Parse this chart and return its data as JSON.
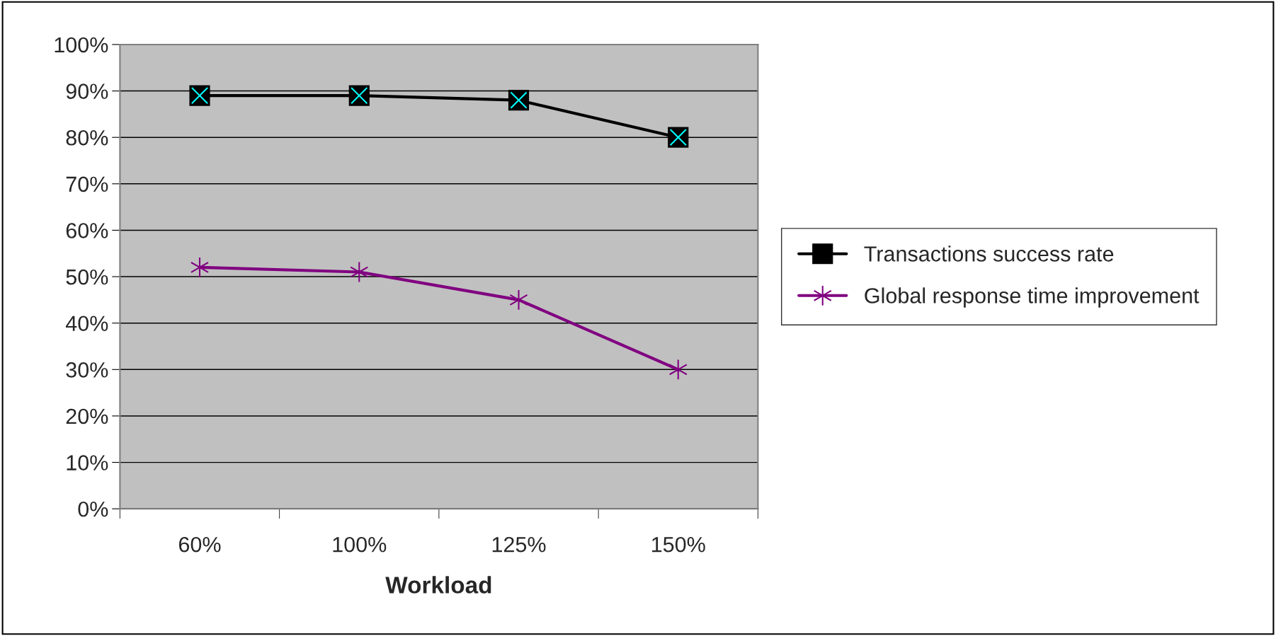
{
  "chart_data": {
    "type": "line",
    "xlabel": "Workload",
    "categories": [
      "60%",
      "100%",
      "125%",
      "150%"
    ],
    "series": [
      {
        "name": "Transactions success rate",
        "color": "#000000",
        "marker": "square",
        "values": [
          89,
          89,
          88,
          80
        ]
      },
      {
        "name": "Global response time improvement",
        "color": "#800080",
        "marker": "cross",
        "values": [
          52,
          51,
          45,
          30
        ]
      }
    ],
    "ylim": [
      0,
      100
    ],
    "yticks": [
      {
        "value": 0,
        "label": "0%"
      },
      {
        "value": 10,
        "label": "10%"
      },
      {
        "value": 20,
        "label": "20%"
      },
      {
        "value": 30,
        "label": "30%"
      },
      {
        "value": 40,
        "label": "40%"
      },
      {
        "value": 50,
        "label": "50%"
      },
      {
        "value": 60,
        "label": "60%"
      },
      {
        "value": 70,
        "label": "70%"
      },
      {
        "value": 80,
        "label": "80%"
      },
      {
        "value": 90,
        "label": "90%"
      },
      {
        "value": 100,
        "label": "100%"
      }
    ],
    "grid": "y",
    "legend": "right",
    "line_style": "solid"
  }
}
